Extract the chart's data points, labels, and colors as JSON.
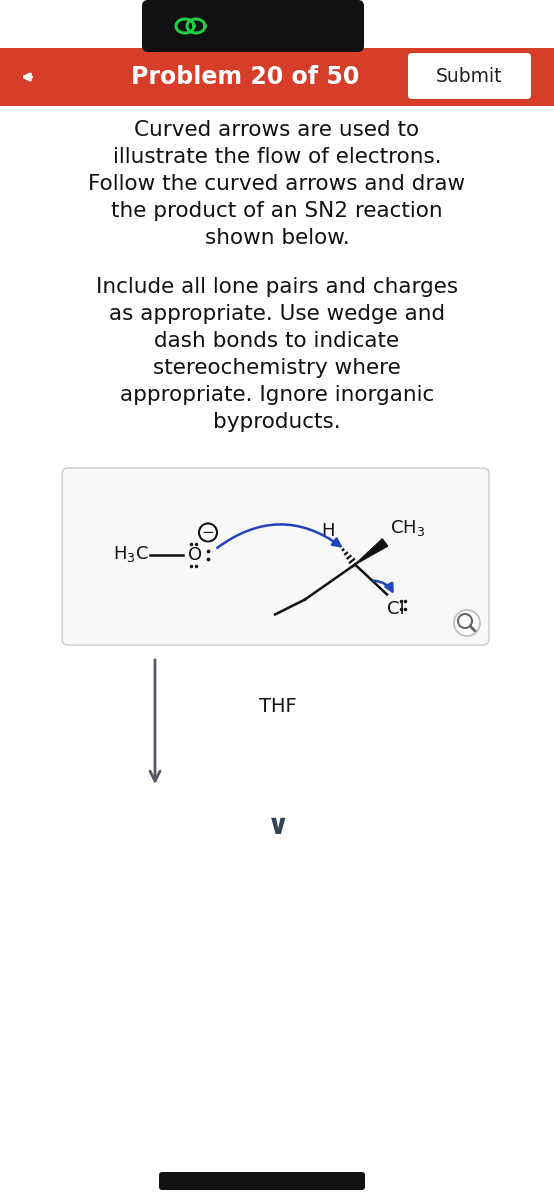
{
  "bg_color": "#ffffff",
  "header_bar_color": "#d63e2a",
  "header_text": "Problem 20 of 50",
  "header_text_color": "#ffffff",
  "submit_btn_text": "Submit",
  "submit_btn_color": "#ffffff",
  "submit_btn_text_color": "#222222",
  "back_arrow_color": "#ffffff",
  "top_bar_color": "#111111",
  "icon_color": "#22cc44",
  "body_text_lines": [
    "Curved arrows are used to",
    "illustrate the flow of electrons.",
    "Follow the curved arrows and draw",
    "the product of an SN2 reaction",
    "shown below."
  ],
  "body_text2_lines": [
    "Include all lone pairs and charges",
    "as appropriate. Use wedge and",
    "dash bonds to indicate",
    "stereochemistry where",
    "appropriate. Ignore inorganic",
    "byproducts."
  ],
  "body_text_color": "#111111",
  "body_font_size": 15.5,
  "reaction_box_bg": "#f8f8f8",
  "reaction_box_edge": "#cccccc",
  "blue_arrow_color": "#2244bb",
  "thf_text": "THF",
  "arrow_color": "#555566",
  "chevron_color": "#334455"
}
